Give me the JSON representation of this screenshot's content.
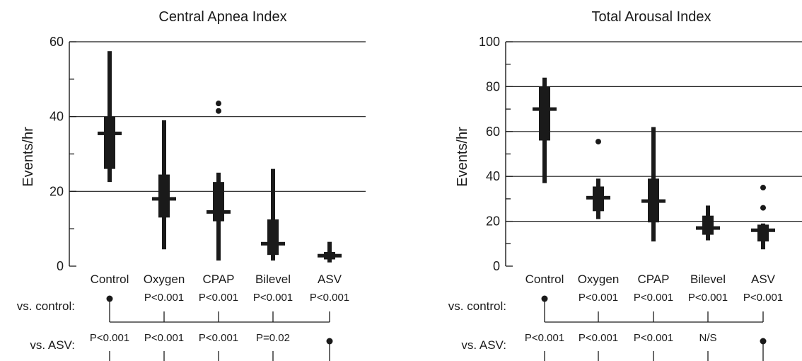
{
  "colors": {
    "ink": "#1a1a1a"
  },
  "row_labels": {
    "vs_control": "vs. control:",
    "vs_asv": "vs. ASV:"
  },
  "chart_data": [
    {
      "type": "boxplot",
      "title": "Central Apnea Index",
      "ylabel": "Events/hr",
      "ylim": [
        0,
        60
      ],
      "yticks": [
        0,
        20,
        40,
        60
      ],
      "gridlines": [
        20,
        40,
        60
      ],
      "grid": true,
      "categories": [
        "Control",
        "Oxygen",
        "CPAP",
        "Bilevel",
        "ASV"
      ],
      "boxes": [
        {
          "category": "Control",
          "whisker_low": 22.5,
          "q1": 26,
          "median": 35.5,
          "q3": 40,
          "whisker_high": 57.5,
          "outliers": []
        },
        {
          "category": "Oxygen",
          "whisker_low": 4.5,
          "q1": 13,
          "median": 18,
          "q3": 24.5,
          "whisker_high": 39,
          "outliers": []
        },
        {
          "category": "CPAP",
          "whisker_low": 1.5,
          "q1": 12,
          "median": 14.5,
          "q3": 22.5,
          "whisker_high": 25,
          "outliers": [
            41.5,
            43.5
          ]
        },
        {
          "category": "Bilevel",
          "whisker_low": 1.5,
          "q1": 3,
          "median": 6,
          "q3": 12.5,
          "whisker_high": 26,
          "outliers": []
        },
        {
          "category": "ASV",
          "whisker_low": 1,
          "q1": 1.8,
          "median": 2.8,
          "q3": 3.8,
          "whisker_high": 6.5,
          "outliers": []
        }
      ],
      "vs_control": [
        "",
        "P<0.001",
        "P<0.001",
        "P<0.001",
        "P<0.001"
      ],
      "vs_asv": [
        "P<0.001",
        "P<0.001",
        "P<0.001",
        "P=0.02",
        ""
      ]
    },
    {
      "type": "boxplot",
      "title": "Total Arousal Index",
      "ylabel": "Events/hr",
      "ylim": [
        0,
        100
      ],
      "yticks": [
        0,
        20,
        40,
        60,
        80,
        100
      ],
      "gridlines": [
        20,
        40,
        60,
        80,
        100
      ],
      "grid": true,
      "categories": [
        "Control",
        "Oxygen",
        "CPAP",
        "Bilevel",
        "ASV"
      ],
      "boxes": [
        {
          "category": "Control",
          "whisker_low": 37,
          "q1": 56,
          "median": 70,
          "q3": 80,
          "whisker_high": 84,
          "outliers": []
        },
        {
          "category": "Oxygen",
          "whisker_low": 21,
          "q1": 24.5,
          "median": 30.5,
          "q3": 35.5,
          "whisker_high": 39,
          "outliers": [
            55.5
          ]
        },
        {
          "category": "CPAP",
          "whisker_low": 11,
          "q1": 19.5,
          "median": 29,
          "q3": 39,
          "whisker_high": 62,
          "outliers": []
        },
        {
          "category": "Bilevel",
          "whisker_low": 11.5,
          "q1": 14,
          "median": 17,
          "q3": 22.5,
          "whisker_high": 27,
          "outliers": []
        },
        {
          "category": "ASV",
          "whisker_low": 7.5,
          "q1": 11,
          "median": 16,
          "q3": 18.5,
          "whisker_high": 19,
          "outliers": [
            26,
            35
          ]
        }
      ],
      "vs_control": [
        "",
        "P<0.001",
        "P<0.001",
        "P<0.001",
        "P<0.001"
      ],
      "vs_asv": [
        "P<0.001",
        "P<0.001",
        "P<0.001",
        "N/S",
        ""
      ]
    }
  ]
}
